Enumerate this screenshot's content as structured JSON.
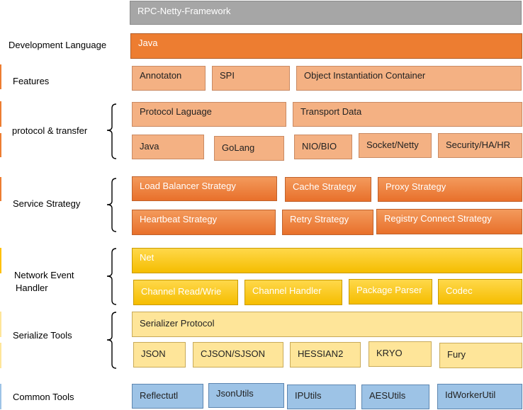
{
  "title": "RPC-Netty-Framework",
  "rows": {
    "development_language": {
      "label": "Development Language",
      "items": [
        "Java"
      ]
    },
    "features": {
      "label": "Features",
      "items": [
        "Annotaton",
        "SPI",
        "Object Instantiation Container"
      ]
    },
    "protocol_transfer": {
      "label": "protocol & transfer",
      "top_items": [
        "Protocol Laguage",
        "Transport Data"
      ],
      "bottom_items": [
        "Java",
        "GoLang",
        "NIO/BIO",
        "Socket/Netty",
        "Security/HA/HR"
      ]
    },
    "service_strategy": {
      "label": "Service Strategy",
      "top_items": [
        "Load Balancer Strategy",
        "Cache Strategy",
        "Proxy Strategy"
      ],
      "bottom_items": [
        "Heartbeat Strategy",
        "Retry Strategy",
        "Registry Connect Strategy"
      ]
    },
    "network_event_handler": {
      "label_line1": "Network Event",
      "label_line2": "Handler",
      "top_item": "Net",
      "bottom_items": [
        "Channel Read/Wrie",
        "Channel Handler",
        "Package Parser",
        "Codec"
      ]
    },
    "serialize_tools": {
      "label": "Serialize Tools",
      "top_item": "Serializer Protocol",
      "bottom_items": [
        "JSON",
        "CJSON/SJSON",
        "HESSIAN2",
        "KRYO",
        "Fury"
      ]
    },
    "common_tools": {
      "label": "Common Tools",
      "items": [
        "Reflectutl",
        "JsonUtils",
        "IPUtils",
        "AESUtils",
        "IdWorkerUtil"
      ]
    }
  },
  "colors": {
    "title": "#a6a6a6",
    "dark_orange": "#ed7d31",
    "light_orange": "#f4b183",
    "yellow": "#ffc000",
    "light_yellow": "#ffd966",
    "pale_yellow": "#fee599",
    "blue": "#9dc3e6"
  }
}
